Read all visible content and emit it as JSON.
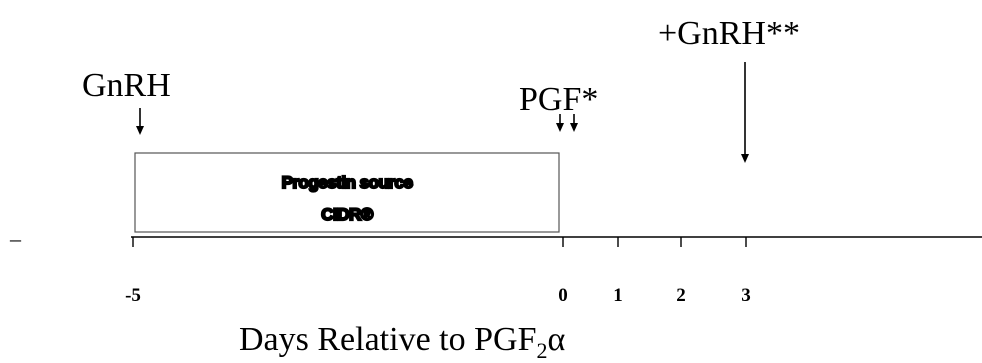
{
  "labels": {
    "gnrh_start": "GnRH",
    "pgf": "PGF*",
    "gnrh_end": "+GnRH**"
  },
  "box": {
    "line1": "Progestin source",
    "line2": "CIDR®"
  },
  "axis": {
    "title_main": "Days Relative to PGF",
    "title_sub": "2",
    "title_suffix": "α",
    "ticks": [
      {
        "value": -5,
        "label": "-5"
      },
      {
        "value": 0,
        "label": "0"
      },
      {
        "value": 1,
        "label": "1"
      },
      {
        "value": 2,
        "label": "2"
      },
      {
        "value": 3,
        "label": "3"
      }
    ],
    "left_dash": "–"
  },
  "colors": {
    "ink": "#000000",
    "box_border": "#555555",
    "background": "#ffffff"
  }
}
